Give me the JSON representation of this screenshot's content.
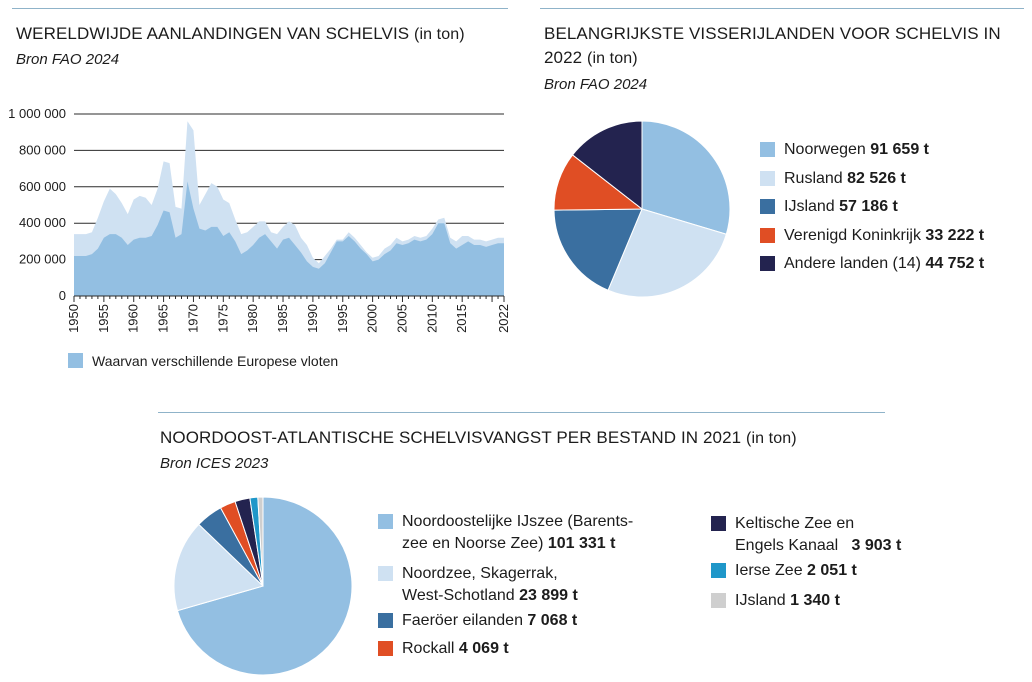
{
  "chart1": {
    "title": "WERELDWIJDE AANLANDINGEN VAN SCHELVIS",
    "unit": "(in ton)",
    "source": "Bron FAO 2024",
    "legend": "Waarvan verschillende Europese vloten",
    "colors": {
      "total": "#cfe1f2",
      "europe": "#93bfe2"
    }
  },
  "chart2": {
    "title_line1": "BELANGRIJKSTE VISSERIJLANDEN VOOR SCHELVIS IN",
    "title_line2": "2022",
    "unit": "(in ton)",
    "source": "Bron FAO 2024"
  },
  "chart3": {
    "title": "NOORDOOST-ATLANTISCHE SCHELVISVANGST PER BESTAND IN 2021",
    "unit": "(in ton)",
    "source": "Bron ICES 2023"
  },
  "chart_data": [
    {
      "type": "area",
      "title": "WERELDWIJDE AANLANDINGEN VAN SCHELVIS (in ton)",
      "ylim": [
        0,
        1000000
      ],
      "y_ticks": [
        "1 000 000",
        "800 000",
        "600 000",
        "400 000",
        "200 000",
        "0"
      ],
      "x_ticks": [
        "1950",
        "1955",
        "1960",
        "1965",
        "1970",
        "1975",
        "1980",
        "1985",
        "1990",
        "1995",
        "2000",
        "2005",
        "2010",
        "2015",
        "2022"
      ],
      "grid": true,
      "x": [
        1950,
        1951,
        1952,
        1953,
        1954,
        1955,
        1956,
        1957,
        1958,
        1959,
        1960,
        1961,
        1962,
        1963,
        1964,
        1965,
        1966,
        1967,
        1968,
        1969,
        1970,
        1971,
        1972,
        1973,
        1974,
        1975,
        1976,
        1977,
        1978,
        1979,
        1980,
        1981,
        1982,
        1983,
        1984,
        1985,
        1986,
        1987,
        1988,
        1989,
        1990,
        1991,
        1992,
        1993,
        1994,
        1995,
        1996,
        1997,
        1998,
        1999,
        2000,
        2001,
        2002,
        2003,
        2004,
        2005,
        2006,
        2007,
        2008,
        2009,
        2010,
        2011,
        2012,
        2013,
        2014,
        2015,
        2016,
        2017,
        2018,
        2019,
        2020,
        2021,
        2022
      ],
      "series": [
        {
          "values": [
            340000,
            340000,
            340000,
            350000,
            430000,
            520000,
            590000,
            560000,
            510000,
            450000,
            530000,
            550000,
            540000,
            500000,
            590000,
            740000,
            730000,
            490000,
            480000,
            960000,
            910000,
            500000,
            560000,
            620000,
            600000,
            530000,
            510000,
            420000,
            340000,
            350000,
            380000,
            410000,
            410000,
            350000,
            340000,
            380000,
            410000,
            390000,
            320000,
            280000,
            210000,
            180000,
            220000,
            260000,
            310000,
            310000,
            350000,
            320000,
            280000,
            240000,
            210000,
            220000,
            260000,
            280000,
            320000,
            300000,
            310000,
            330000,
            320000,
            330000,
            370000,
            420000,
            430000,
            320000,
            300000,
            330000,
            330000,
            310000,
            310000,
            300000,
            310000,
            320000,
            320000
          ]
        },
        {
          "name": "Waarvan verschillende Europese vloten",
          "values": [
            220000,
            220000,
            220000,
            230000,
            260000,
            320000,
            340000,
            340000,
            320000,
            280000,
            310000,
            320000,
            320000,
            330000,
            390000,
            470000,
            460000,
            320000,
            340000,
            630000,
            480000,
            370000,
            360000,
            380000,
            380000,
            330000,
            350000,
            300000,
            230000,
            250000,
            280000,
            320000,
            340000,
            300000,
            260000,
            310000,
            320000,
            280000,
            240000,
            190000,
            160000,
            150000,
            180000,
            240000,
            300000,
            300000,
            330000,
            300000,
            260000,
            230000,
            190000,
            200000,
            230000,
            250000,
            290000,
            280000,
            290000,
            310000,
            300000,
            310000,
            340000,
            400000,
            400000,
            290000,
            260000,
            280000,
            300000,
            280000,
            280000,
            270000,
            280000,
            290000,
            290000
          ]
        }
      ]
    },
    {
      "type": "pie",
      "title": "BELANGRIJKSTE VISSERIJLANDEN VOOR SCHELVIS IN 2022 (in ton)",
      "legend_position": "right",
      "slices": [
        {
          "name": "Noorwegen",
          "value_label": "91 659 t",
          "value": 91659,
          "color": "#93bfe2"
        },
        {
          "name": "Rusland",
          "value_label": "82 526 t",
          "value": 82526,
          "color": "#cfe1f2"
        },
        {
          "name": "IJsland",
          "value_label": "57 186 t",
          "value": 57186,
          "color": "#3a6fa0"
        },
        {
          "name": "Verenigd Koninkrijk",
          "value_label": "33 222 t",
          "value": 33222,
          "color": "#e04e24"
        },
        {
          "name": "Andere landen (14)",
          "value_label": "44 752 t",
          "value": 44752,
          "color": "#23234f"
        }
      ]
    },
    {
      "type": "pie",
      "title": "NOORDOOST-ATLANTISCHE SCHELVISVANGST PER BESTAND IN 2021 (in ton)",
      "legend_position": "right",
      "slices": [
        {
          "name": "Noordoostelijke IJszee (Barents-zee en Noorse Zee)",
          "line1": "Noordoostelijke IJszee (Barents-",
          "line2": "zee en Noorse Zee)",
          "value_label": "101 331 t",
          "value": 101331,
          "color": "#93bfe2"
        },
        {
          "name": "Noordzee, Skagerrak, West-Schotland",
          "line1": "Noordzee, Skagerrak,",
          "line2": "West-Schotland",
          "value_label": "23 899 t",
          "value": 23899,
          "color": "#cfe1f2"
        },
        {
          "name": "Faeröer eilanden",
          "line1": "Faeröer eilanden",
          "value_label": "7 068 t",
          "value": 7068,
          "color": "#3a6fa0"
        },
        {
          "name": "Rockall",
          "line1": "Rockall",
          "value_label": "4 069 t",
          "value": 4069,
          "color": "#e04e24"
        },
        {
          "name": "Keltische Zee en Engels Kanaal",
          "line1": "Keltische Zee en",
          "line2": "Engels Kanaal",
          "value_label": "3 903 t",
          "value": 3903,
          "color": "#23234f"
        },
        {
          "name": "Ierse Zee",
          "line1": "Ierse Zee",
          "value_label": "2 051 t",
          "value": 2051,
          "color": "#1f97c9"
        },
        {
          "name": "IJsland",
          "line1": "IJsland",
          "value_label": "1 340 t",
          "value": 1340,
          "color": "#cfcfcf"
        }
      ]
    }
  ]
}
